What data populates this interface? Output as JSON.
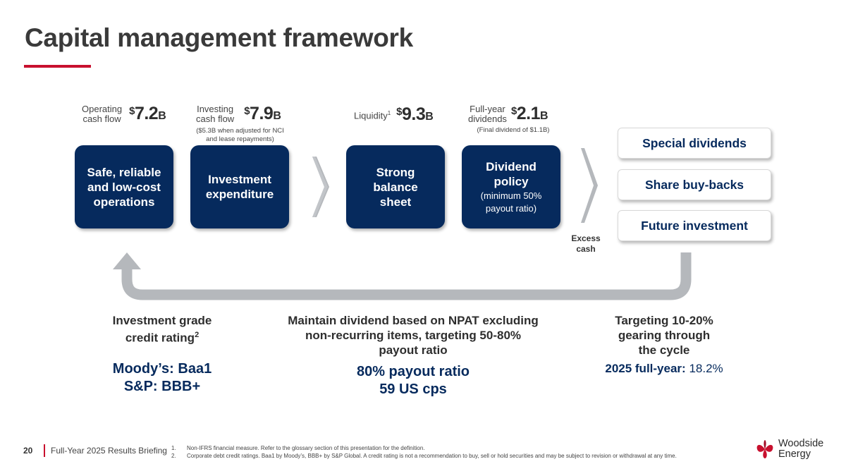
{
  "title": "Capital management framework",
  "metrics": {
    "operating": {
      "label_1": "Operating",
      "label_2": "cash flow",
      "currency": "$",
      "value": "7.2",
      "unit": "B"
    },
    "investing": {
      "label_1": "Investing",
      "label_2": "cash flow",
      "currency": "$",
      "value": "7.9",
      "unit": "B",
      "note_1": "($5.3B when adjusted for NCI",
      "note_2": "and lease repayments)"
    },
    "liquidity": {
      "label": "Liquidity",
      "footnote": "1",
      "currency": "$",
      "value": "9.3",
      "unit": "B"
    },
    "dividends": {
      "label_1": "Full-year",
      "label_2": "dividends",
      "currency": "$",
      "value": "2.1",
      "unit": "B",
      "note": "(Final dividend of $1.1B)"
    }
  },
  "boxes": [
    {
      "line1": "Safe, reliable",
      "line2": "and low-cost",
      "line3": "operations"
    },
    {
      "line1": "Investment",
      "line2": "expenditure"
    },
    {
      "line1": "Strong",
      "line2": "balance",
      "line3": "sheet"
    },
    {
      "line1": "Dividend",
      "line2": "policy",
      "sub1": "(minimum 50%",
      "sub2": "payout ratio)"
    }
  ],
  "options": [
    "Special dividends",
    "Share buy-backs",
    "Future investment"
  ],
  "excess_cash": {
    "line1": "Excess",
    "line2": "cash"
  },
  "bottom": {
    "credit": {
      "head1": "Investment grade",
      "head2": "credit rating",
      "footnote": "2",
      "val1": "Moody’s: Baa1",
      "val2": "S&P: BBB+"
    },
    "dividend": {
      "head1": "Maintain dividend based on NPAT excluding",
      "head2": "non-recurring items, targeting 50-80%",
      "head3": "payout ratio",
      "val1": "80% payout ratio",
      "val2": "59 US cps"
    },
    "gearing": {
      "head1": "Targeting 10-20%",
      "head2": "gearing through",
      "head3": "the cycle",
      "val_label": "2025 full-year:",
      "val": "18.2%"
    }
  },
  "footer": {
    "page": "20",
    "text": "Full-Year 2025 Results Briefing",
    "notes": [
      {
        "n": "1.",
        "text": "Non-IFRS financial measure. Refer to the glossary section of this presentation for the definition."
      },
      {
        "n": "2.",
        "text": "Corporate debt credit ratings. Baa1 by Moody’s, BBB+ by S&P Global. A credit rating is not a recommendation to buy, sell or hold securities and may be subject to revision or withdrawal at any time."
      }
    ]
  },
  "logo": {
    "line1": "Woodside",
    "line2": "Energy",
    "icon": "woodside-flower-icon"
  },
  "colors": {
    "navy": "#062a5d",
    "accent": "#c8102e",
    "arrow_gray": "#b5b8bc"
  }
}
